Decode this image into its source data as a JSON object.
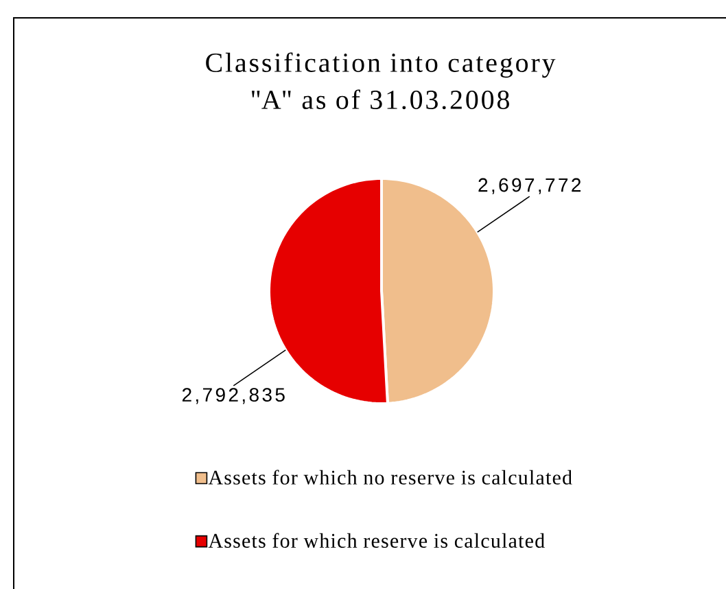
{
  "chart_data": {
    "type": "pie",
    "title": "Classification into category \"A\" as of 31.03.2008",
    "categories": [
      "Assets for which no reserve is calculated",
      "Assets for which reserve is calculated"
    ],
    "values": [
      2697772,
      2792835
    ],
    "value_labels": [
      "2,697,772",
      "2,792,835"
    ],
    "colors": [
      "#f0be8c",
      "#e60000"
    ],
    "legend": "bottom"
  }
}
